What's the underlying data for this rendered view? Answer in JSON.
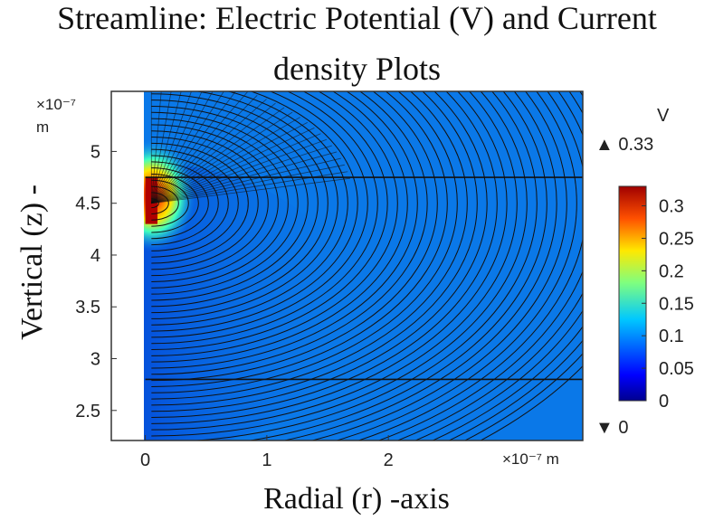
{
  "title_line1": "Streamline: Electric Potential (V) and Current",
  "title_line2": "density Plots",
  "chart_data": {
    "type": "heatmap",
    "title": "Streamline: Electric Potential (V) and Current density Plots",
    "xlabel": "Radial (r) -axis",
    "ylabel": "Vertical (z) -",
    "x_unit_label": "×10⁻⁷ m",
    "y_unit_label": "×10⁻⁷",
    "y_unit_label_m": "m",
    "x_ticks": [
      "0",
      "1",
      "2"
    ],
    "x_tick_values": [
      0,
      1,
      2
    ],
    "y_ticks": [
      "5",
      "4.5",
      "4",
      "3.5",
      "3",
      "2.5"
    ],
    "y_tick_values": [
      5,
      4.5,
      4,
      3.5,
      3,
      2.5
    ],
    "xlim": [
      -0.28,
      3.6
    ],
    "ylim": [
      2.21,
      5.58
    ],
    "colorbar": {
      "label": "V",
      "ticks": [
        "0.3",
        "0.25",
        "0.2",
        "0.15",
        "0.1",
        "0.05",
        "0"
      ],
      "tick_values": [
        0.3,
        0.25,
        0.2,
        0.15,
        0.1,
        0.05,
        0
      ],
      "range": [
        0,
        0.33
      ],
      "max_label": "▲ 0.33",
      "min_label": "▼ 0",
      "colormap": [
        "#00008f",
        "#0000ff",
        "#00c8ff",
        "#7fff7f",
        "#ffe800",
        "#ff5000",
        "#a00000"
      ]
    },
    "electrode": {
      "r": [
        0,
        0.1
      ],
      "z": [
        4.3,
        4.75
      ]
    },
    "horizontal_lines_z": [
      4.75,
      2.8
    ],
    "background_potential": 0.06
  }
}
